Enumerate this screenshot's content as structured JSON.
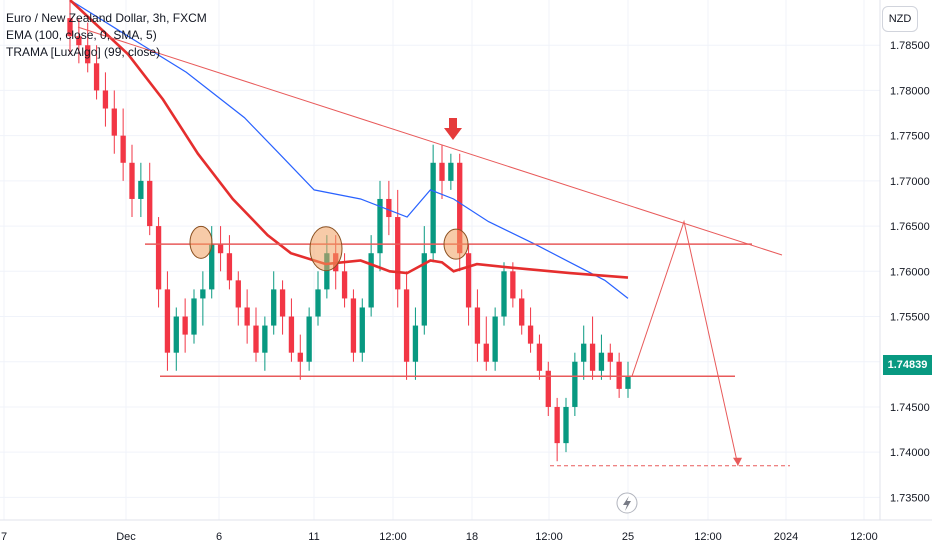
{
  "header": {
    "symbol_line": "Euro / New Zealand Dollar, 3h, FXCM",
    "indicator_1": "EMA (100, close, 0, SMA, 5)",
    "indicator_2": "TRAMA [LuxAlgo] (99, close)",
    "currency": "NZD"
  },
  "last_price": "1.74839",
  "icons": {
    "timezone": "lightning-icon"
  },
  "colors": {
    "up": "#089981",
    "down": "#f23645",
    "ema": "#2962ff",
    "trama": "#e52e2e",
    "annotation": "#e85a5a",
    "highlight": "#f0a060"
  },
  "chart_data": {
    "type": "candlestick",
    "title": "Euro / New Zealand Dollar, 3h, FXCM",
    "y_axis_ticks": [
      "1.78500",
      "1.78000",
      "1.77500",
      "1.77000",
      "1.76500",
      "1.76000",
      "1.75500",
      "1.75000",
      "1.74500",
      "1.74000",
      "1.73500"
    ],
    "x_axis_ticks": [
      "7",
      "Dec",
      "6",
      "11",
      "12:00",
      "18",
      "12:00",
      "25",
      "12:00",
      "2024",
      "12:00"
    ],
    "ylim": [
      1.7325,
      1.79
    ],
    "grid": true,
    "legend": "top-left",
    "series": [
      {
        "name": "EMA (100, close, 0, SMA, 5)",
        "type": "line",
        "points": [
          [
            0,
            1.79
          ],
          [
            10,
            1.786
          ],
          [
            20,
            1.782
          ],
          [
            30,
            1.777
          ],
          [
            36,
            1.773
          ],
          [
            42,
            1.769
          ],
          [
            50,
            1.768
          ],
          [
            58,
            1.766
          ],
          [
            62,
            1.769
          ],
          [
            66,
            1.768
          ],
          [
            72,
            1.7655
          ],
          [
            80,
            1.763
          ],
          [
            86,
            1.761
          ],
          [
            92,
            1.759
          ],
          [
            96,
            1.757
          ]
        ]
      },
      {
        "name": "TRAMA [LuxAlgo] (99, close)",
        "type": "line",
        "points": [
          [
            0,
            1.79
          ],
          [
            10,
            1.784
          ],
          [
            16,
            1.779
          ],
          [
            22,
            1.773
          ],
          [
            28,
            1.768
          ],
          [
            34,
            1.764
          ],
          [
            38,
            1.762
          ],
          [
            44,
            1.7608
          ],
          [
            50,
            1.7612
          ],
          [
            55,
            1.76
          ],
          [
            58,
            1.7598
          ],
          [
            62,
            1.7612
          ],
          [
            64,
            1.761
          ],
          [
            66,
            1.76
          ],
          [
            70,
            1.7608
          ],
          [
            76,
            1.7604
          ],
          [
            86,
            1.7598
          ],
          [
            96,
            1.7593
          ]
        ]
      }
    ],
    "candles": [
      [
        1.788,
        1.79,
        1.784,
        1.786
      ],
      [
        1.786,
        1.788,
        1.783,
        1.785
      ],
      [
        1.785,
        1.7875,
        1.782,
        1.783
      ],
      [
        1.783,
        1.785,
        1.779,
        1.78
      ],
      [
        1.78,
        1.782,
        1.776,
        1.778
      ],
      [
        1.778,
        1.78,
        1.773,
        1.775
      ],
      [
        1.775,
        1.778,
        1.77,
        1.772
      ],
      [
        1.772,
        1.774,
        1.766,
        1.768
      ],
      [
        1.768,
        1.772,
        1.766,
        1.77
      ],
      [
        1.77,
        1.772,
        1.764,
        1.765
      ],
      [
        1.765,
        1.766,
        1.756,
        1.758
      ],
      [
        1.758,
        1.76,
        1.749,
        1.751
      ],
      [
        1.751,
        1.756,
        1.749,
        1.755
      ],
      [
        1.755,
        1.757,
        1.751,
        1.753
      ],
      [
        1.753,
        1.758,
        1.752,
        1.757
      ],
      [
        1.757,
        1.76,
        1.754,
        1.758
      ],
      [
        1.758,
        1.765,
        1.757,
        1.763
      ],
      [
        1.763,
        1.765,
        1.76,
        1.762
      ],
      [
        1.762,
        1.764,
        1.758,
        1.759
      ],
      [
        1.759,
        1.76,
        1.754,
        1.756
      ],
      [
        1.756,
        1.758,
        1.752,
        1.754
      ],
      [
        1.754,
        1.756,
        1.75,
        1.751
      ],
      [
        1.751,
        1.755,
        1.749,
        1.754
      ],
      [
        1.754,
        1.76,
        1.753,
        1.758
      ],
      [
        1.758,
        1.759,
        1.753,
        1.755
      ],
      [
        1.755,
        1.757,
        1.75,
        1.751
      ],
      [
        1.751,
        1.753,
        1.748,
        1.75
      ],
      [
        1.75,
        1.756,
        1.749,
        1.755
      ],
      [
        1.755,
        1.76,
        1.754,
        1.758
      ],
      [
        1.758,
        1.764,
        1.757,
        1.762
      ],
      [
        1.762,
        1.764,
        1.758,
        1.76
      ],
      [
        1.76,
        1.762,
        1.756,
        1.757
      ],
      [
        1.757,
        1.758,
        1.75,
        1.751
      ],
      [
        1.751,
        1.757,
        1.75,
        1.756
      ],
      [
        1.756,
        1.764,
        1.755,
        1.762
      ],
      [
        1.762,
        1.77,
        1.76,
        1.768
      ],
      [
        1.768,
        1.77,
        1.764,
        1.766
      ],
      [
        1.766,
        1.769,
        1.756,
        1.758
      ],
      [
        1.758,
        1.76,
        1.748,
        1.75
      ],
      [
        1.75,
        1.756,
        1.748,
        1.754
      ],
      [
        1.754,
        1.765,
        1.753,
        1.762
      ],
      [
        1.762,
        1.774,
        1.761,
        1.772
      ],
      [
        1.772,
        1.774,
        1.768,
        1.77
      ],
      [
        1.77,
        1.773,
        1.769,
        1.772
      ],
      [
        1.772,
        1.773,
        1.76,
        1.762
      ],
      [
        1.762,
        1.763,
        1.754,
        1.756
      ],
      [
        1.756,
        1.758,
        1.75,
        1.752
      ],
      [
        1.752,
        1.755,
        1.749,
        1.75
      ],
      [
        1.75,
        1.756,
        1.749,
        1.755
      ],
      [
        1.755,
        1.761,
        1.754,
        1.76
      ],
      [
        1.76,
        1.761,
        1.756,
        1.757
      ],
      [
        1.757,
        1.758,
        1.753,
        1.754
      ],
      [
        1.754,
        1.756,
        1.751,
        1.752
      ],
      [
        1.752,
        1.753,
        1.748,
        1.749
      ],
      [
        1.749,
        1.75,
        1.744,
        1.745
      ],
      [
        1.745,
        1.746,
        1.739,
        1.741
      ],
      [
        1.741,
        1.746,
        1.74,
        1.745
      ],
      [
        1.745,
        1.751,
        1.744,
        1.75
      ],
      [
        1.75,
        1.754,
        1.748,
        1.752
      ],
      [
        1.752,
        1.755,
        1.748,
        1.749
      ],
      [
        1.749,
        1.753,
        1.748,
        1.751
      ],
      [
        1.751,
        1.752,
        1.748,
        1.75
      ],
      [
        1.75,
        1.751,
        1.746,
        1.747
      ],
      [
        1.747,
        1.75,
        1.746,
        1.7484
      ]
    ],
    "annotations": [
      {
        "label": "downtrend-line",
        "from": [
          1.787,
          0.09
        ],
        "to": [
          1.7618,
          0.84
        ]
      },
      {
        "label": "resistance-line",
        "value": 1.763
      },
      {
        "label": "support-line",
        "value": 1.7484
      },
      {
        "label": "target-line",
        "value": 1.7385
      }
    ]
  }
}
